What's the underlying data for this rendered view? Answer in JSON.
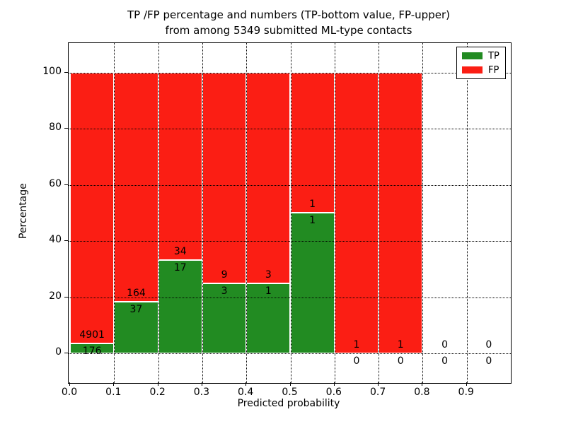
{
  "figure": {
    "title_line1": "TP /FP percentage and numbers (TP-bottom value, FP-upper)",
    "title_line2": "from among 5349 submitted ML-type contacts"
  },
  "axes": {
    "xlabel": "Predicted probability",
    "ylabel": "Percentage",
    "x_tick_labels": [
      "0.0",
      "0.1",
      "0.2",
      "0.3",
      "0.4",
      "0.5",
      "0.6",
      "0.7",
      "0.8",
      "0.9"
    ],
    "y_tick_labels": [
      "0",
      "20",
      "40",
      "60",
      "80",
      "100"
    ],
    "y_tick_values": [
      0,
      20,
      40,
      60,
      80,
      100
    ]
  },
  "legend": {
    "items": [
      {
        "label": "TP",
        "color": "#228b22"
      },
      {
        "label": "FP",
        "color": "#fb1e14"
      }
    ]
  },
  "colors": {
    "tp_green": "#228b22",
    "fp_red": "#fb1e14",
    "grid": "#000000",
    "background": "#ffffff"
  },
  "chart_data": {
    "type": "bar",
    "stacked": true,
    "normalized_to": 100,
    "title": "TP /FP percentage and numbers (TP-bottom value, FP-upper) from among 5349 submitted ML-type contacts",
    "xlabel": "Predicted probability",
    "ylabel": "Percentage",
    "xlim": [
      0.0,
      1.0
    ],
    "ylim": [
      -10.5,
      110.4
    ],
    "grid": true,
    "grid_style": "dotted",
    "legend_position": "upper right",
    "bin_width": 0.1,
    "total_contacts": 5349,
    "series_names": [
      "TP",
      "FP"
    ],
    "bins": [
      {
        "x_range": [
          0.0,
          0.1
        ],
        "tp_count": 176,
        "fp_count": 4901,
        "tp_percent": 3.47,
        "fp_percent": 96.53
      },
      {
        "x_range": [
          0.1,
          0.2
        ],
        "tp_count": 37,
        "fp_count": 164,
        "tp_percent": 18.41,
        "fp_percent": 81.59
      },
      {
        "x_range": [
          0.2,
          0.3
        ],
        "tp_count": 17,
        "fp_count": 34,
        "tp_percent": 33.33,
        "fp_percent": 66.67
      },
      {
        "x_range": [
          0.3,
          0.4
        ],
        "tp_count": 3,
        "fp_count": 9,
        "tp_percent": 25.0,
        "fp_percent": 75.0
      },
      {
        "x_range": [
          0.4,
          0.5
        ],
        "tp_count": 1,
        "fp_count": 3,
        "tp_percent": 25.0,
        "fp_percent": 75.0
      },
      {
        "x_range": [
          0.5,
          0.6
        ],
        "tp_count": 1,
        "fp_count": 1,
        "tp_percent": 50.0,
        "fp_percent": 50.0
      },
      {
        "x_range": [
          0.6,
          0.7
        ],
        "tp_count": 0,
        "fp_count": 1,
        "tp_percent": 0.0,
        "fp_percent": 100.0
      },
      {
        "x_range": [
          0.7,
          0.8
        ],
        "tp_count": 0,
        "fp_count": 1,
        "tp_percent": 0.0,
        "fp_percent": 100.0
      },
      {
        "x_range": [
          0.8,
          0.9
        ],
        "tp_count": 0,
        "fp_count": 0,
        "tp_percent": null,
        "fp_percent": null
      },
      {
        "x_range": [
          0.9,
          1.0
        ],
        "tp_count": 0,
        "fp_count": 0,
        "tp_percent": null,
        "fp_percent": null
      }
    ]
  }
}
